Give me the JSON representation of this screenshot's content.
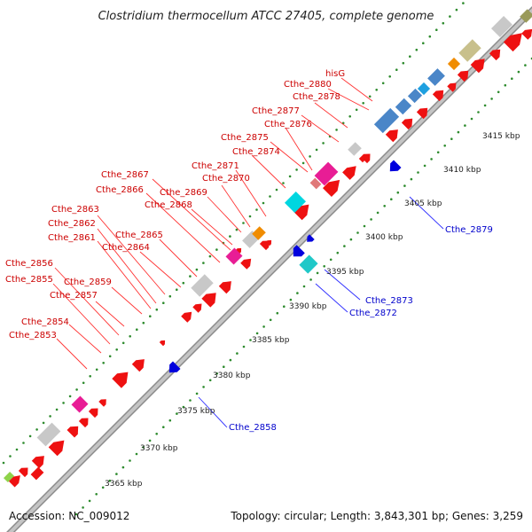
{
  "title": "Clostridium thermocellum ATCC 27405, complete genome",
  "footer": {
    "accession": "Accession: NC_009012",
    "summary": "Topology: circular; Length: 3,843,301 bp; Genes: 3,259"
  },
  "colors": {
    "forward_gene": "#ee1111",
    "reverse_gene": "#0000dd",
    "backbone": "#a8a8a8",
    "forward_label": "#cc0000",
    "reverse_label": "#0000cc",
    "tick_dots": "#2e8b2e"
  },
  "scale_labels": [
    "3365 kbp",
    "3370 kbp",
    "3375 kbp",
    "3380 kbp",
    "3385 kbp",
    "3390 kbp",
    "3395 kbp",
    "3400 kbp",
    "3405 kbp",
    "3410 kbp",
    "3415 kbp"
  ],
  "forward_labels": [
    "hisG",
    "Cthe_2880",
    "Cthe_2878",
    "Cthe_2877",
    "Cthe_2876",
    "Cthe_2875",
    "Cthe_2874",
    "Cthe_2871",
    "Cthe_2870",
    "Cthe_2869",
    "Cthe_2868",
    "Cthe_2867",
    "Cthe_2866",
    "Cthe_2865",
    "Cthe_2864",
    "Cthe_2863",
    "Cthe_2862",
    "Cthe_2861",
    "Cthe_2859",
    "Cthe_2857",
    "Cthe_2856",
    "Cthe_2855",
    "Cthe_2854",
    "Cthe_2853"
  ],
  "reverse_labels": [
    "Cthe_2879",
    "Cthe_2873",
    "Cthe_2872",
    "Cthe_2858"
  ]
}
